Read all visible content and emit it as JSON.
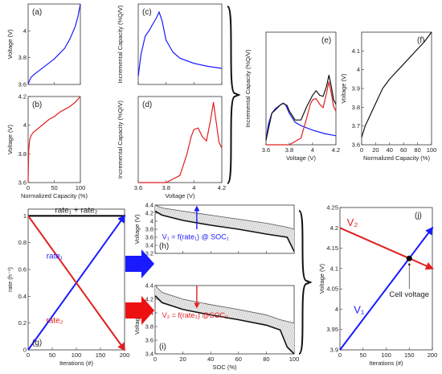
{
  "panels": [
    {
      "id": "a",
      "type": "line",
      "label": "(a)",
      "xlabel": "",
      "ylabel": "Voltage (V)",
      "xlim": [
        0,
        100
      ],
      "ylim": [
        3.6,
        4.2
      ],
      "xticks": [
        0,
        50,
        100
      ],
      "yticks": [
        3.6,
        3.8,
        4
      ],
      "xtick_labels": [],
      "series": [
        {
          "color": "#1a1aff",
          "x": [
            0,
            5,
            10,
            20,
            30,
            40,
            50,
            60,
            70,
            80,
            90,
            95,
            100
          ],
          "y": [
            3.605,
            3.65,
            3.67,
            3.7,
            3.73,
            3.76,
            3.79,
            3.83,
            3.87,
            3.94,
            4.03,
            4.1,
            4.2
          ]
        }
      ]
    },
    {
      "id": "b",
      "type": "line",
      "label": "(b)",
      "xlabel": "Normalized Capacity (%)",
      "ylabel": "Voltage (V)",
      "xlim": [
        0,
        100
      ],
      "ylim": [
        3.6,
        4.2
      ],
      "xticks": [
        0,
        50,
        100
      ],
      "yticks": [
        3.6,
        3.8,
        4,
        4.2
      ],
      "series": [
        {
          "color": "#e02020",
          "x": [
            0,
            1,
            3,
            6,
            10,
            20,
            30,
            40,
            50,
            60,
            70,
            80,
            90,
            100
          ],
          "y": [
            3.6,
            3.82,
            3.9,
            3.93,
            3.95,
            3.98,
            4.01,
            4.04,
            4.06,
            4.09,
            4.11,
            4.13,
            4.16,
            4.2
          ]
        }
      ]
    },
    {
      "id": "c",
      "type": "line",
      "label": "(c)",
      "xlabel": "",
      "ylabel": "Incremental Capacity (%Q/V)",
      "xlim": [
        3.6,
        4.2
      ],
      "ylim": [
        0,
        400
      ],
      "xticks": [
        3.6,
        3.8,
        4,
        4.2
      ],
      "yticks": [],
      "xtick_labels": [],
      "series": [
        {
          "color": "#1a1aff",
          "x": [
            3.6,
            3.62,
            3.65,
            3.68,
            3.7,
            3.73,
            3.75,
            3.77,
            3.8,
            3.85,
            3.9,
            4,
            4.1,
            4.2
          ],
          "y": [
            40,
            150,
            240,
            270,
            295,
            330,
            360,
            320,
            220,
            160,
            130,
            105,
            90,
            80
          ]
        }
      ]
    },
    {
      "id": "d",
      "type": "line",
      "label": "(d)",
      "xlabel": "Voltage (V)",
      "ylabel": "Incremental Capacity (%Q/V)",
      "xlim": [
        3.6,
        4.2
      ],
      "ylim": [
        0,
        600
      ],
      "xticks": [
        3.6,
        3.8,
        4,
        4.2
      ],
      "yticks": [],
      "series": [
        {
          "color": "#e02020",
          "x": [
            3.6,
            3.8,
            3.9,
            3.95,
            3.98,
            4.0,
            4.03,
            4.06,
            4.09,
            4.12,
            4.14,
            4.16,
            4.18,
            4.2
          ],
          "y": [
            0,
            0,
            50,
            200,
            320,
            370,
            380,
            320,
            290,
            440,
            560,
            420,
            280,
            240
          ]
        }
      ]
    },
    {
      "id": "e",
      "type": "line",
      "label": "(e)",
      "xlabel": "Voltage (V)",
      "ylabel": "Incremental Capacity (%Q/V)",
      "xlim": [
        3.6,
        4.2
      ],
      "ylim": [
        0,
        500
      ],
      "xticks": [
        3.6,
        3.8,
        4,
        4.2
      ],
      "yticks": [],
      "series": [
        {
          "color": "#1a1aff",
          "x": [
            3.6,
            3.62,
            3.65,
            3.68,
            3.7,
            3.73,
            3.75,
            3.77,
            3.8,
            3.85,
            3.9,
            4,
            4.1,
            4.2
          ],
          "y": [
            20,
            90,
            140,
            160,
            168,
            180,
            185,
            175,
            140,
            100,
            85,
            65,
            50,
            40
          ]
        },
        {
          "color": "#e02020",
          "x": [
            3.6,
            3.8,
            3.9,
            3.95,
            3.98,
            4.0,
            4.03,
            4.06,
            4.09,
            4.12,
            4.14,
            4.16,
            4.18,
            4.2
          ],
          "y": [
            0,
            0,
            30,
            120,
            180,
            200,
            205,
            180,
            165,
            230,
            280,
            230,
            170,
            150
          ]
        },
        {
          "color": "#111111",
          "x": [
            3.6,
            3.65,
            3.7,
            3.73,
            3.75,
            3.78,
            3.8,
            3.85,
            3.9,
            3.95,
            4.0,
            4.03,
            4.06,
            4.09,
            4.12,
            4.14,
            4.16,
            4.18,
            4.2
          ],
          "y": [
            20,
            140,
            165,
            180,
            183,
            175,
            150,
            110,
            110,
            170,
            220,
            240,
            220,
            215,
            260,
            310,
            260,
            200,
            180
          ]
        }
      ]
    },
    {
      "id": "f",
      "type": "line",
      "label": "(f)",
      "xlabel": "Normalized Capacity (%)",
      "ylabel": "Voltage (V)",
      "xlim": [
        0,
        100
      ],
      "ylim": [
        3.6,
        4.2
      ],
      "xticks": [
        0,
        20,
        40,
        60,
        80,
        100
      ],
      "yticks": [
        3.6,
        3.7,
        3.8,
        3.9,
        4,
        4.1
      ],
      "series": [
        {
          "color": "#111111",
          "x": [
            0,
            5,
            10,
            20,
            30,
            40,
            50,
            60,
            70,
            80,
            90,
            100
          ],
          "y": [
            3.64,
            3.7,
            3.74,
            3.82,
            3.9,
            3.95,
            3.99,
            4.03,
            4.07,
            4.11,
            4.15,
            4.2
          ]
        }
      ]
    },
    {
      "id": "g",
      "type": "line",
      "label": "(g)",
      "xlabel": "Iterations (#)",
      "ylabel": "rate (h⁻¹)",
      "xlim": [
        0,
        200
      ],
      "ylim": [
        0,
        1.05
      ],
      "xticks": [
        0,
        50,
        100,
        150,
        200
      ],
      "yticks": [
        0,
        0.2,
        0.4,
        0.6,
        0.8,
        1
      ],
      "series": [
        {
          "name": "rate₁ + rate₂",
          "color": "#000000",
          "x": [
            0,
            200
          ],
          "y": [
            1,
            1
          ]
        },
        {
          "name": "rate₁",
          "color": "#1a1aff",
          "x": [
            0,
            200
          ],
          "y": [
            0,
            1
          ]
        },
        {
          "name": "rate₂",
          "color": "#e02020",
          "x": [
            0,
            200
          ],
          "y": [
            1,
            0
          ]
        }
      ],
      "annotations": [
        "rate₁ + rate₂",
        "rate₁",
        "rate₂"
      ]
    },
    {
      "id": "h",
      "type": "area",
      "label": "(h)",
      "xlabel": "",
      "ylabel": "Voltage (V)",
      "xlim": [
        0,
        100
      ],
      "ylim": [
        3.2,
        4.4
      ],
      "xticks": [
        0,
        20,
        40,
        60,
        80,
        100
      ],
      "yticks": [
        3.2,
        3.4,
        3.6,
        3.8,
        4,
        4.2,
        4.4
      ],
      "xtick_labels": [],
      "band_upper": {
        "x": [
          0,
          5,
          20,
          40,
          60,
          80,
          95,
          100
        ],
        "y": [
          4.4,
          4.33,
          4.25,
          4.15,
          4.05,
          3.95,
          3.85,
          3.8
        ]
      },
      "band_lower": {
        "x": [
          0,
          5,
          20,
          40,
          60,
          80,
          95,
          100
        ],
        "y": [
          4.25,
          4.15,
          4.02,
          3.9,
          3.8,
          3.68,
          3.6,
          3.25
        ]
      },
      "annotation": "V₁ = f(rate₁) @ SOC₁"
    },
    {
      "id": "i",
      "type": "area",
      "label": "(i)",
      "xlabel": "SOC (%)",
      "ylabel": "Voltage (V)",
      "xlim": [
        0,
        100
      ],
      "ylim": [
        3.4,
        4.4
      ],
      "xticks": [
        0,
        20,
        40,
        60,
        80,
        100
      ],
      "yticks": [
        3.4,
        3.6,
        3.8,
        4,
        4.2,
        4.4
      ],
      "band_upper": {
        "x": [
          0,
          5,
          20,
          40,
          60,
          80,
          90,
          100
        ],
        "y": [
          4.4,
          4.3,
          4.2,
          4.12,
          4.05,
          3.97,
          3.9,
          3.85
        ]
      },
      "band_lower": {
        "x": [
          0,
          5,
          20,
          40,
          60,
          80,
          90,
          95,
          100
        ],
        "y": [
          4.25,
          4.15,
          4.05,
          3.97,
          3.9,
          3.82,
          3.75,
          3.5,
          3.4
        ]
      },
      "annotation": "V₂ = f(rate₂) @SOC₂"
    },
    {
      "id": "j",
      "type": "line",
      "label": "(j)",
      "xlabel": "Iterations (#)",
      "ylabel": "Voltage (V)",
      "xlim": [
        0,
        200
      ],
      "ylim": [
        3.9,
        4.25
      ],
      "xticks": [
        0,
        50,
        100,
        150,
        200
      ],
      "yticks": [
        3.9,
        3.95,
        4,
        4.05,
        4.1,
        4.15,
        4.2,
        4.25
      ],
      "series": [
        {
          "name": "V₁",
          "color": "#1a1aff",
          "x": [
            0,
            200
          ],
          "y": [
            3.9,
            4.2
          ]
        },
        {
          "name": "V₂",
          "color": "#e02020",
          "x": [
            0,
            200
          ],
          "y": [
            4.2,
            4.1
          ]
        }
      ],
      "point": {
        "x": 150,
        "y": 4.125,
        "label": "Cell voltage"
      }
    }
  ],
  "labels": {
    "v1": "V₁",
    "v2": "V₂",
    "cell": "Cell voltage"
  }
}
